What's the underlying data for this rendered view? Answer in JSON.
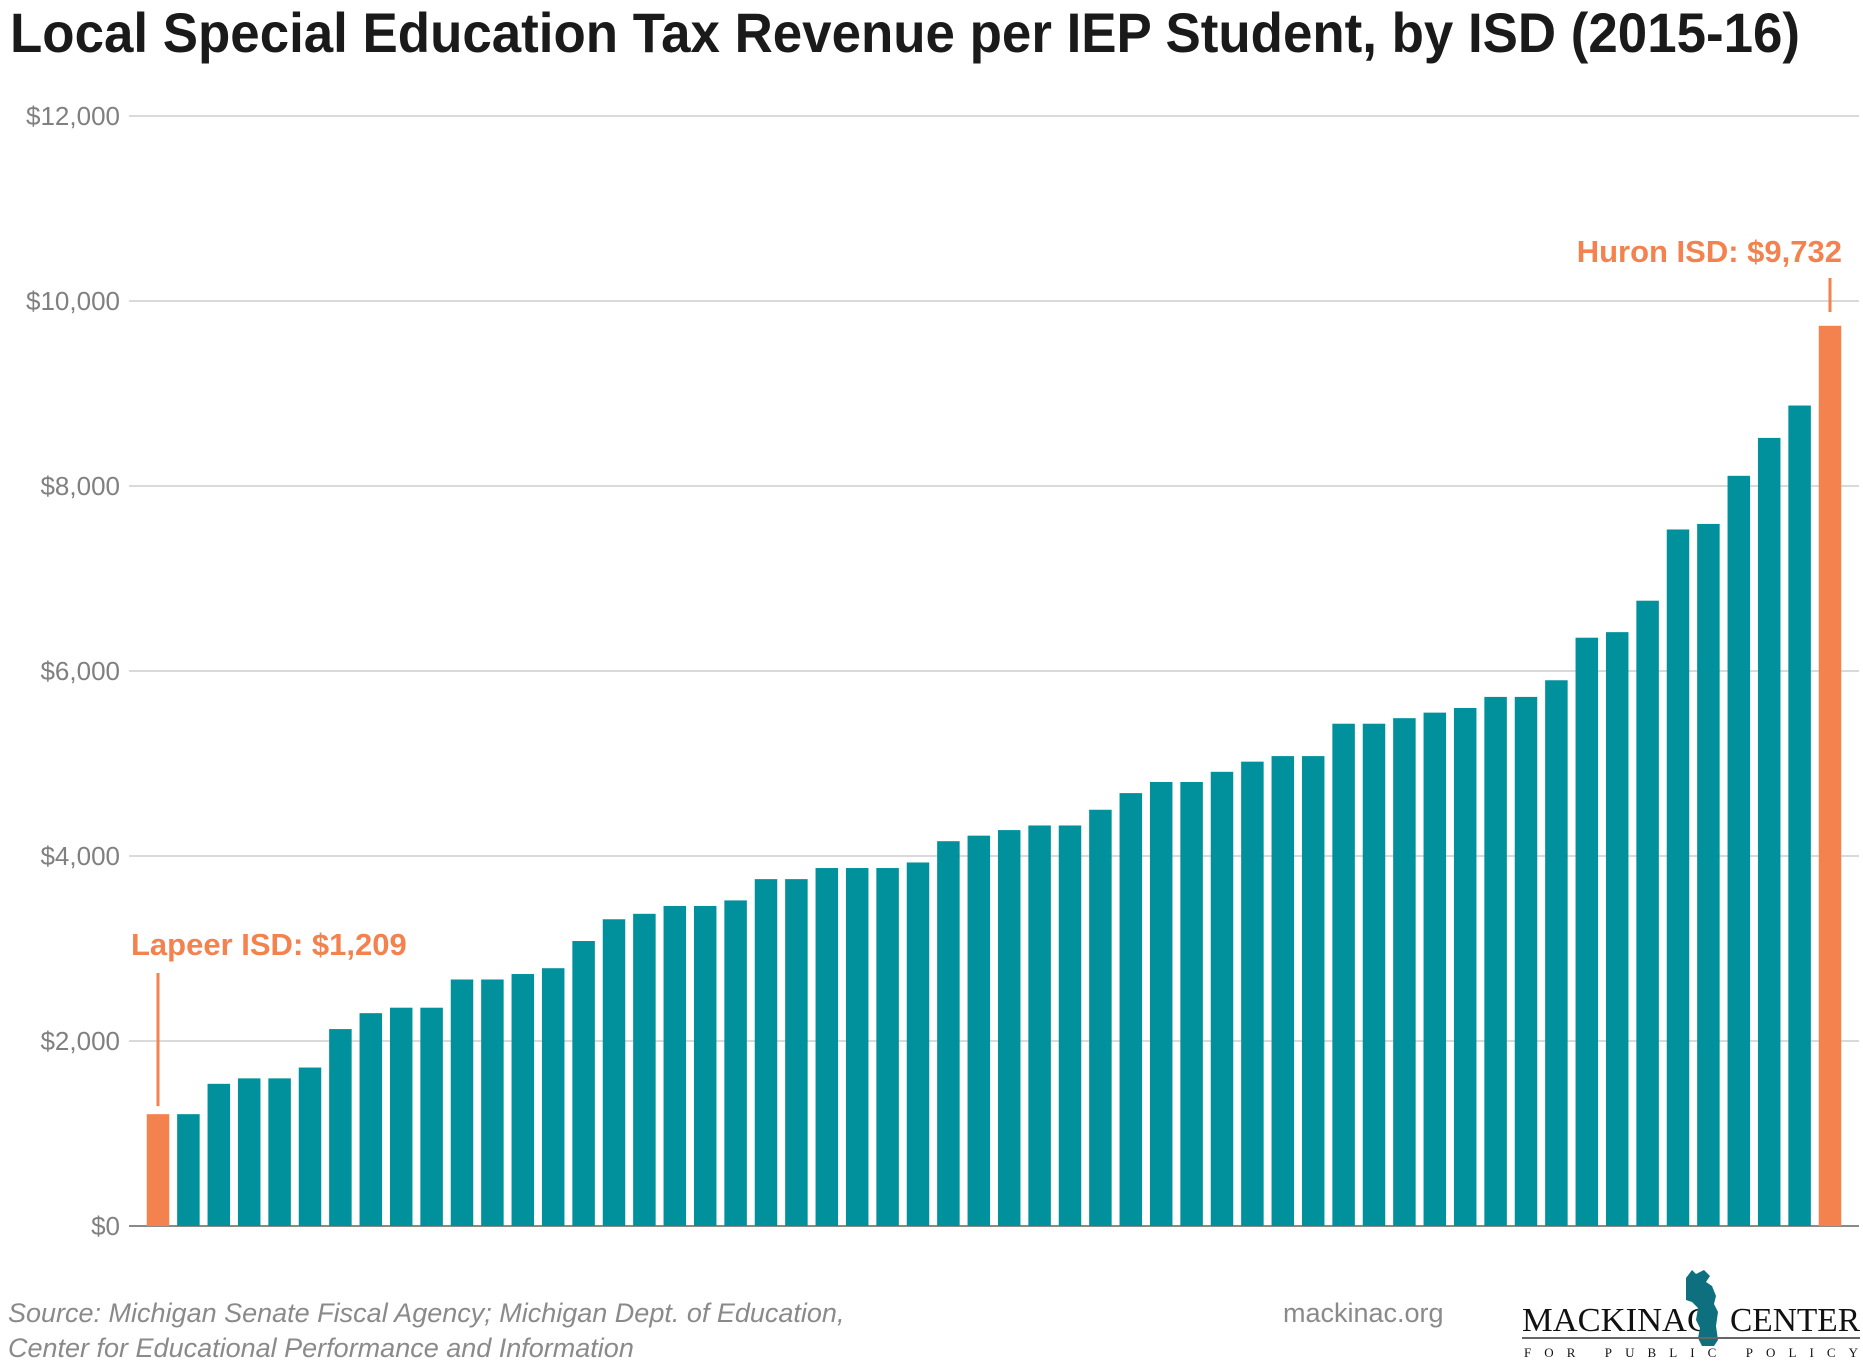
{
  "chart_data": {
    "type": "bar",
    "title": "Local Special Education Tax Revenue per IEP Student, by ISD (2015-16)",
    "xlabel": "",
    "ylabel": "",
    "ylim": [
      0,
      12000
    ],
    "y_ticks": [
      0,
      2000,
      4000,
      6000,
      8000,
      10000,
      12000
    ],
    "y_tick_labels": [
      "$0",
      "$2,000",
      "$4,000",
      "$6,000",
      "$8,000",
      "$10,000",
      "$12,000"
    ],
    "grid": true,
    "values": [
      1209,
      1209,
      1537,
      1596,
      1596,
      1713,
      2129,
      2301,
      2360,
      2360,
      2665,
      2665,
      2724,
      2787,
      3081,
      3316,
      3375,
      3460,
      3460,
      3520,
      3750,
      3750,
      3870,
      3870,
      3870,
      3930,
      4160,
      4220,
      4280,
      4330,
      4330,
      4500,
      4680,
      4800,
      4800,
      4910,
      5020,
      5080,
      5080,
      5430,
      5430,
      5490,
      5550,
      5600,
      5720,
      5720,
      5900,
      6360,
      6420,
      6760,
      7530,
      7590,
      8110,
      8520,
      8870,
      9732
    ],
    "highlighted_indices": [
      0,
      55
    ],
    "colors": {
      "bar": "#00919d",
      "highlight": "#f3824f",
      "grid": "#c4c4c4",
      "axis": "#8a8a8a"
    },
    "annotations": [
      {
        "text": "Lapeer ISD: $1,209",
        "bar_index": 0,
        "value": 1209
      },
      {
        "text": "Huron ISD: $9,732",
        "bar_index": 55,
        "value": 9732
      }
    ]
  },
  "footer": {
    "source_line1": "Source: Michigan Senate Fiscal Agency; Michigan Dept. of Education,",
    "source_line2": "Center for Educational Performance and Information",
    "website": "mackinac.org",
    "logo": {
      "left": "MACKINAC",
      "right": "CENTER",
      "tagline": "FOR PUBLIC POLICY",
      "color": "#0e6f7e"
    }
  }
}
